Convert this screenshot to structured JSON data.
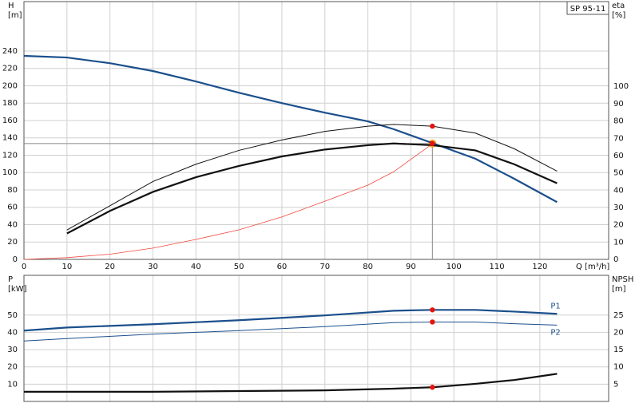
{
  "chart_data": [
    {
      "type": "line",
      "title": "SP 95-11",
      "ylabel": "H",
      "yunit": "[m]",
      "y2label": "eta",
      "y2unit": "[%]",
      "xlabel": "Q [m³/h]",
      "xlim": [
        0,
        136
      ],
      "ylim": [
        0,
        297
      ],
      "y2lim": [
        0,
        149
      ],
      "grid": true,
      "xticks": [
        0,
        10,
        20,
        30,
        40,
        50,
        60,
        70,
        80,
        90,
        100,
        110,
        120
      ],
      "yticks": [
        0,
        20,
        40,
        60,
        80,
        100,
        120,
        140,
        160,
        180,
        200,
        220,
        240
      ],
      "y2ticks": [
        0,
        10,
        20,
        30,
        40,
        50,
        60,
        70,
        80,
        90,
        100
      ],
      "series": [
        {
          "color": "#1b4f8c",
          "width": 2.2,
          "x": [
            0,
            10,
            20,
            30,
            40,
            50,
            60,
            70,
            80,
            86,
            95,
            105,
            114,
            124
          ],
          "values": [
            234.5,
            232.6,
            226,
            217,
            205,
            192,
            180,
            169,
            159,
            150,
            134,
            116,
            93,
            66
          ]
        },
        {
          "color": "#111111",
          "width": 1,
          "axis": "y2",
          "x": [
            10,
            20,
            30,
            40,
            50,
            60,
            70,
            80,
            86,
            95,
            105,
            114,
            124
          ],
          "values": [
            17,
            31,
            45,
            55,
            63,
            69,
            74,
            77,
            78,
            77,
            73,
            64,
            51
          ]
        },
        {
          "color": "#111111",
          "width": 2.2,
          "axis": "y2",
          "x": [
            10,
            20,
            30,
            40,
            50,
            60,
            70,
            80,
            86,
            95,
            105,
            114,
            124
          ],
          "values": [
            15,
            28,
            39,
            47.5,
            54,
            59.5,
            63.5,
            66,
            67,
            66,
            63,
            55,
            44
          ]
        },
        {
          "color": "#f04a3e",
          "width": 0.8,
          "x": [
            0,
            10,
            20,
            30,
            40,
            50,
            60,
            70,
            80,
            86,
            95
          ],
          "values": [
            0,
            2,
            6,
            13,
            23,
            34,
            49,
            67,
            85.5,
            101,
            133
          ]
        }
      ],
      "duty_point": {
        "x": 95,
        "y": 133.5
      },
      "markers": [
        {
          "x": 95,
          "y": 133.5
        },
        {
          "x": 95,
          "y": 77,
          "axis": "y2"
        }
      ]
    },
    {
      "type": "line",
      "ylabel": "P",
      "yunit": "[kW]",
      "y2label": "NPSH",
      "y2unit": "[m]",
      "xlim": [
        0,
        136
      ],
      "ylim": [
        0,
        73
      ],
      "y2lim": [
        0,
        36.5
      ],
      "grid": true,
      "yticks": [
        10,
        20,
        30,
        40,
        50
      ],
      "y2ticks": [
        5,
        10,
        15,
        20,
        25
      ],
      "series": [
        {
          "name": "P1",
          "color": "#1b4f8c",
          "width": 2.2,
          "x": [
            0,
            10,
            30,
            50,
            70,
            86,
            95,
            105,
            114,
            124
          ],
          "values": [
            41,
            42.8,
            44.7,
            47,
            49.8,
            52.5,
            53,
            53,
            52,
            50.7
          ]
        },
        {
          "name": "P2",
          "color": "#1b4f8c",
          "width": 1,
          "x": [
            0,
            10,
            30,
            50,
            70,
            86,
            95,
            105,
            114,
            124
          ],
          "values": [
            35,
            36.4,
            39,
            41,
            43.3,
            45.6,
            46,
            46,
            45,
            44.2
          ]
        },
        {
          "color": "#111111",
          "width": 2.2,
          "axis": "y2",
          "x": [
            0,
            10,
            30,
            50,
            70,
            86,
            95,
            105,
            114,
            124
          ],
          "values": [
            2.8,
            2.8,
            2.8,
            3,
            3.2,
            3.7,
            4.1,
            5.1,
            6.2,
            8
          ]
        }
      ],
      "markers": [
        {
          "x": 95,
          "y": 53
        },
        {
          "x": 95,
          "y": 46
        },
        {
          "x": 95,
          "y": 4.1,
          "axis": "y2"
        }
      ]
    }
  ]
}
